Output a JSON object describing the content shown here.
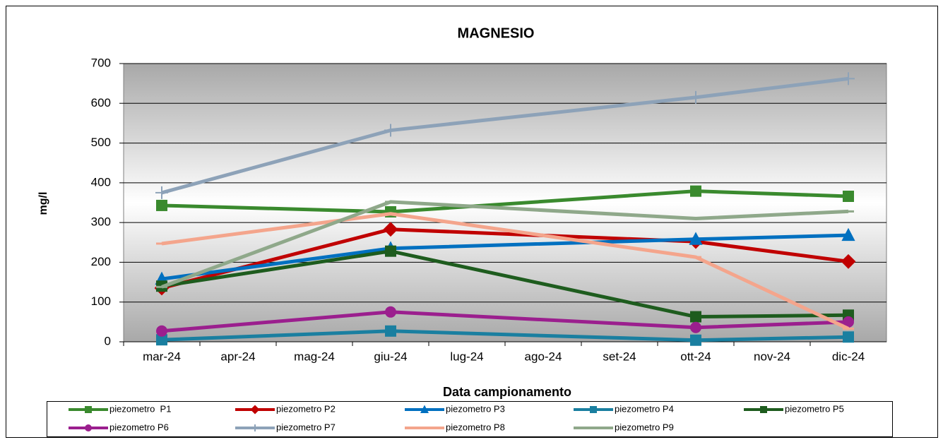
{
  "chart_data": {
    "type": "line",
    "title": "MAGNESIO",
    "x_label": "Data campionamento",
    "y_label": "mg/l",
    "categories": [
      "mar-24",
      "apr-24",
      "mag-24",
      "giu-24",
      "lug-24",
      "ago-24",
      "set-24",
      "ott-24",
      "nov-24",
      "dic-24"
    ],
    "ylim": [
      0,
      700
    ],
    "yticks": [
      0,
      100,
      200,
      300,
      400,
      500,
      600,
      700
    ],
    "grid": true,
    "series": [
      {
        "name": "piezometro  P1",
        "color": "#3a8a2e",
        "marker": "square",
        "x": [
          "mar-24",
          "giu-24",
          "ott-24",
          "dic-24"
        ],
        "values": [
          343,
          327,
          379,
          366
        ]
      },
      {
        "name": "piezometro P2",
        "color": "#c00000",
        "marker": "diamond",
        "x": [
          "mar-24",
          "giu-24",
          "ott-24",
          "dic-24"
        ],
        "values": [
          135,
          283,
          252,
          202
        ]
      },
      {
        "name": "piezometro P3",
        "color": "#0070c0",
        "marker": "triangle",
        "x": [
          "mar-24",
          "giu-24",
          "ott-24",
          "dic-24"
        ],
        "values": [
          158,
          235,
          258,
          268
        ]
      },
      {
        "name": "piezometro P4",
        "color": "#1a7fa0",
        "marker": "square",
        "x": [
          "mar-24",
          "giu-24",
          "ott-24",
          "dic-24"
        ],
        "values": [
          5,
          27,
          4,
          12
        ]
      },
      {
        "name": "piezometro P5",
        "color": "#1e5c1e",
        "marker": "square",
        "x": [
          "mar-24",
          "giu-24",
          "ott-24",
          "dic-24"
        ],
        "values": [
          140,
          228,
          63,
          67
        ]
      },
      {
        "name": "piezometro P6",
        "color": "#9b1f8e",
        "marker": "circle",
        "x": [
          "mar-24",
          "giu-24",
          "ott-24",
          "dic-24"
        ],
        "values": [
          27,
          75,
          36,
          50
        ]
      },
      {
        "name": "piezometro P7",
        "color": "#8da2b8",
        "marker": "plus",
        "x": [
          "mar-24",
          "giu-24",
          "ott-24",
          "dic-24"
        ],
        "values": [
          375,
          532,
          615,
          662
        ]
      },
      {
        "name": "piezometro P8",
        "color": "#f4a58c",
        "marker": "dash",
        "x": [
          "mar-24",
          "giu-24",
          "ott-24",
          "dic-24"
        ],
        "values": [
          247,
          322,
          213,
          33
        ]
      },
      {
        "name": "piezometro P9",
        "color": "#8fa88a",
        "marker": "dash",
        "x": [
          "mar-24",
          "giu-24",
          "ott-24",
          "dic-24"
        ],
        "values": [
          138,
          352,
          310,
          328
        ]
      }
    ]
  }
}
